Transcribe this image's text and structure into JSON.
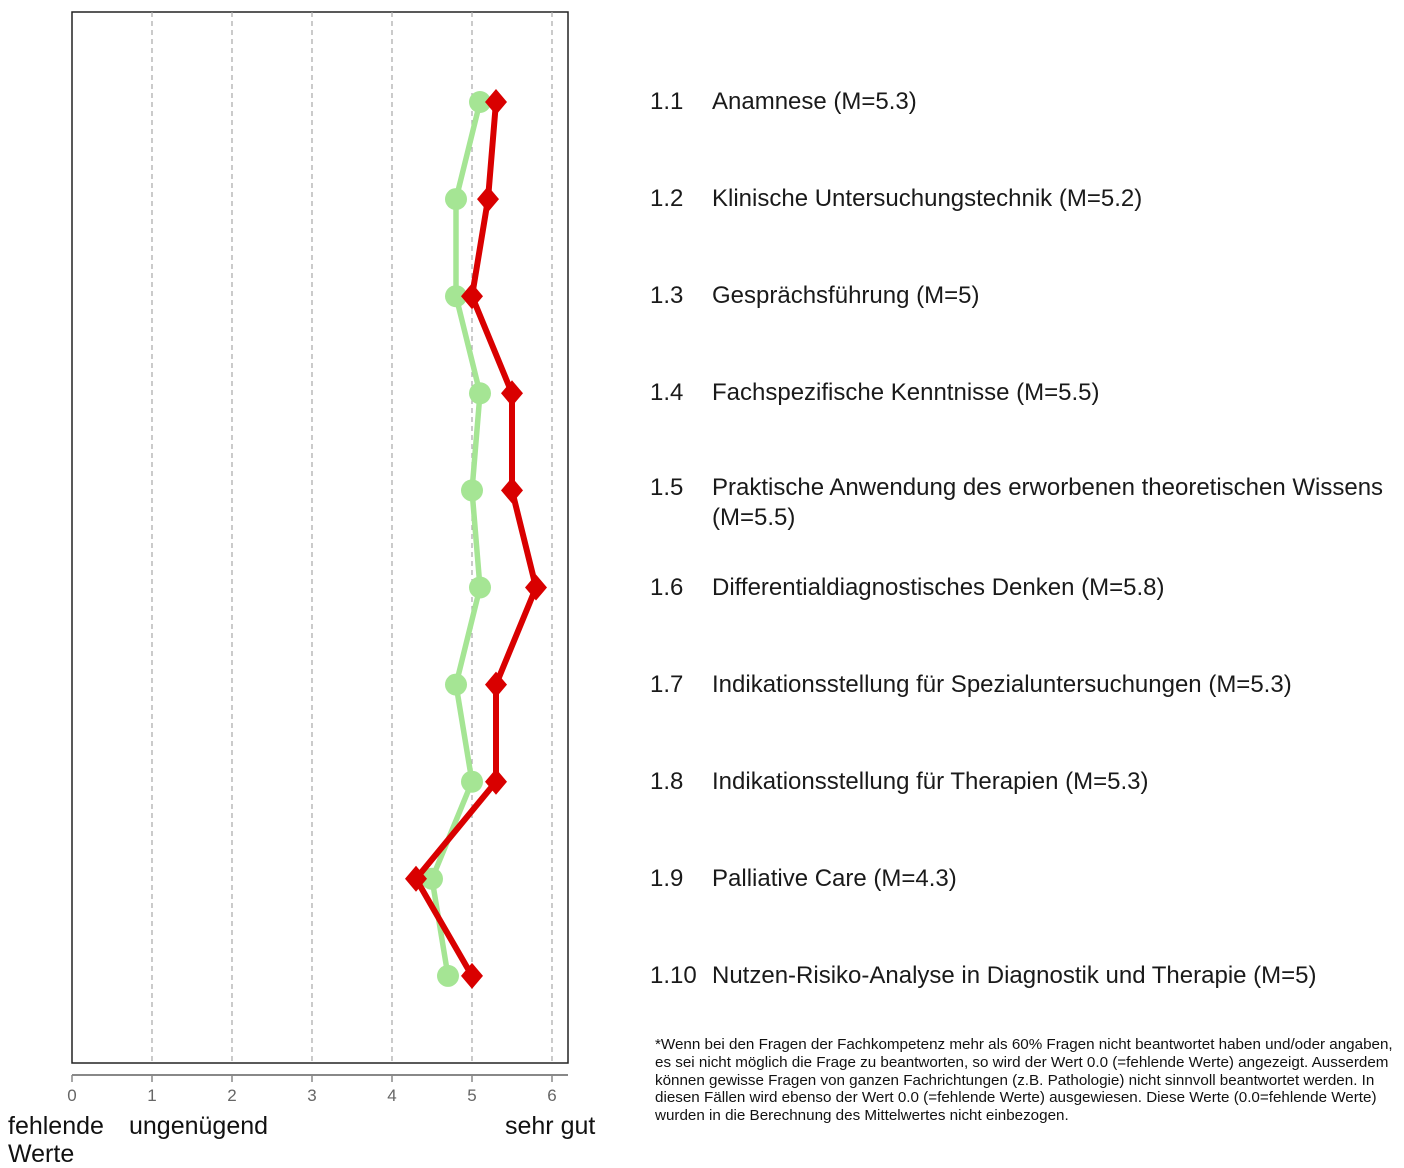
{
  "chart_data": {
    "type": "line",
    "orientation": "horizontal",
    "x_ticks": [
      "0",
      "1",
      "2",
      "3",
      "4",
      "5",
      "6"
    ],
    "xlim": [
      0,
      6.2
    ],
    "grid": "vertical dashed",
    "categories": [
      "1.1",
      "1.2",
      "1.3",
      "1.4",
      "1.5",
      "1.6",
      "1.7",
      "1.8",
      "1.9",
      "1.10"
    ],
    "series": [
      {
        "color": "#a5e594",
        "marker": "circle",
        "values": [
          5.1,
          4.8,
          4.8,
          5.1,
          5.0,
          5.1,
          4.8,
          5.0,
          4.5,
          4.7
        ]
      },
      {
        "color": "#d90000",
        "marker": "diamond",
        "values": [
          5.3,
          5.2,
          5.0,
          5.5,
          5.5,
          5.8,
          5.3,
          5.3,
          4.3,
          5.0
        ]
      }
    ],
    "scale_labels": {
      "low_line1": "fehlende",
      "low_line2": "Werte",
      "mid": "ungenügend",
      "high": "sehr gut"
    }
  },
  "items": [
    {
      "num": "1.1",
      "text": "Anamnese (M=5.3)"
    },
    {
      "num": "1.2",
      "text": "Klinische Untersuchungstechnik (M=5.2)"
    },
    {
      "num": "1.3",
      "text": "Gesprächsführung (M=5)"
    },
    {
      "num": "1.4",
      "text": "Fachspezifische Kenntnisse (M=5.5)"
    },
    {
      "num": "1.5",
      "text": "Praktische Anwendung des erworbenen theoretischen Wissens (M=5.5)"
    },
    {
      "num": "1.6",
      "text": "Differentialdiagnostisches Denken (M=5.8)"
    },
    {
      "num": "1.7",
      "text": "Indikationsstellung für Spezialuntersuchungen (M=5.3)"
    },
    {
      "num": "1.8",
      "text": "Indikationsstellung für Therapien (M=5.3)"
    },
    {
      "num": "1.9",
      "text": "Palliative Care (M=4.3)"
    },
    {
      "num": "1.10",
      "text": "Nutzen-Risiko-Analyse in Diagnostik und Therapie (M=5)"
    }
  ],
  "footnote": "*Wenn bei den Fragen der Fachkompetenz mehr als 60% Fragen nicht beantwortet haben und/oder angaben, es sei nicht möglich die Frage zu beantworten, so wird der Wert 0.0 (=fehlende Werte) angezeigt. Ausserdem können gewisse Fragen von ganzen Fachrichtungen (z.B. Pathologie) nicht sinnvoll beantwortet werden. In diesen Fällen wird ebenso der Wert 0.0 (=fehlende Werte) ausgewiesen. Diese Werte (0.0=fehlende Werte) wurden in die Berechnung des Mittelwertes nicht einbezogen."
}
